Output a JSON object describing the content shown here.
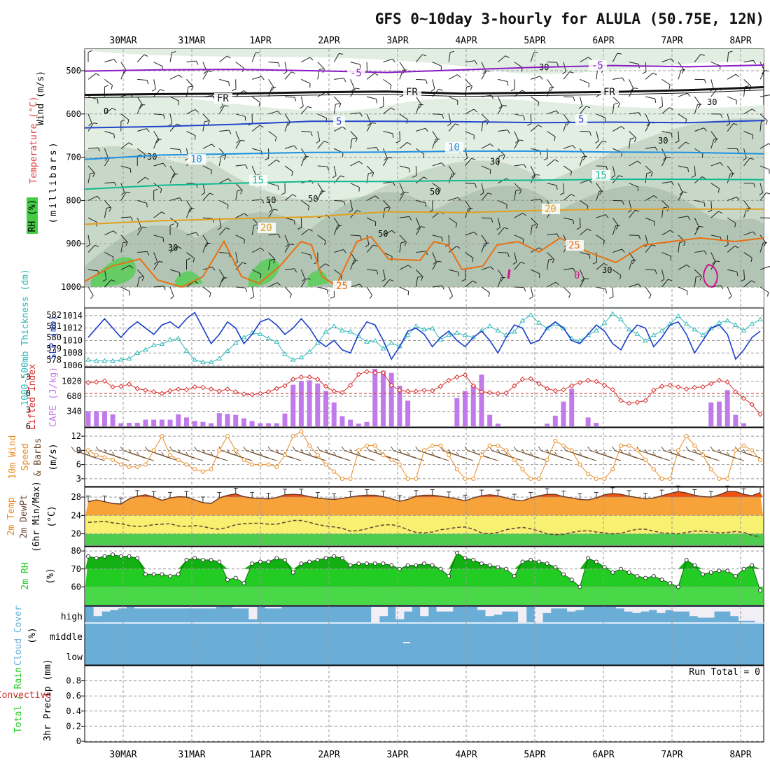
{
  "title": "GFS 0~10day 3-hourly for ALULA (50.75E, 12N)",
  "dates": [
    "30MAR",
    "31MAR",
    "1APR",
    "2APR",
    "3APR",
    "4APR",
    "5APR",
    "6APR",
    "7APR",
    "8APR"
  ],
  "colors": {
    "rh_light": "#e2eee2",
    "rh_mid": "#c8d8c8",
    "rh_dark": "#b2c5b4",
    "rh_green": "#66cc66",
    "t_minus5": "#8a1cc4",
    "t_fr": "#111111",
    "t_5": "#2244cc",
    "t_10": "#1e90e0",
    "t_15": "#10b890",
    "t_20": "#e0a020",
    "t_25": "#e87010",
    "t_30": "#d0108c",
    "slp": "#1a3fc8",
    "thk": "#30b8b8",
    "li": "#d83030",
    "cape": "#c07aec",
    "wind": "#e88a20",
    "barb": "#6b4a2a",
    "temp_fill": "#f7a33a",
    "temp_top": "#f05010",
    "dew_fill": "#f8f070",
    "dew_line": "#6b4a3a",
    "low_fill": "#4ecc4e",
    "rh_fill": "#22cc22",
    "rh_fill2": "#48d848",
    "cloud": "#6aaed8",
    "cloud_gap": "#f2eef6"
  },
  "panel1": {
    "ylabel_wind": "Wind (m/s)",
    "ylabel_temp": "Temperature (°C)",
    "ylabel_rh": "RH (%)",
    "ylabel_mb": "(millibars)",
    "levels": [
      "500",
      "600",
      "700",
      "800",
      "900",
      "1000"
    ],
    "rh_labels": [
      "0",
      "30",
      "30",
      "30",
      "50",
      "30",
      "50",
      "30",
      "50",
      "50",
      "30",
      "30"
    ],
    "isotherms": [
      {
        "name": "minus5",
        "label": "-5",
        "mb": [
          501,
          498,
          497,
          500,
          504,
          498,
          492,
          488,
          491,
          487
        ],
        "labels": [
          "-5",
          "-5"
        ]
      },
      {
        "name": "fr",
        "label": "FR",
        "mb": [
          556,
          554,
          553,
          550,
          548,
          553,
          551,
          549,
          545,
          538
        ],
        "labels": [
          "FR",
          "FR",
          "FR"
        ]
      },
      {
        "name": "5",
        "label": "5",
        "mb": [
          632,
          629,
          624,
          617,
          617,
          618,
          620,
          619,
          620,
          615
        ],
        "labels": [
          "5",
          "5"
        ]
      },
      {
        "name": "10",
        "label": "10",
        "mb": [
          705,
          695,
          692,
          689,
          688,
          686,
          686,
          688,
          689,
          692
        ],
        "labels": [
          "10",
          "10"
        ]
      },
      {
        "name": "15",
        "label": "15",
        "mb": [
          774,
          765,
          760,
          756,
          756,
          754,
          753,
          751,
          751,
          752
        ],
        "labels": [
          "15",
          "15"
        ]
      },
      {
        "name": "20",
        "label": "20",
        "mb": [
          855,
          847,
          842,
          838,
          826,
          828,
          823,
          820,
          820,
          820
        ],
        "labels": [
          "20",
          "20"
        ]
      },
      {
        "name": "25",
        "label": "25",
        "mb": [
          998,
          930,
          1002,
          935,
          1000,
          905,
          1003,
          900,
          1000,
          890
        ],
        "labels": [
          "25",
          "25",
          "25"
        ]
      },
      {
        "name": "30",
        "label": "0",
        "mb": [
          960,
          975
        ],
        "labels": [
          "0"
        ]
      }
    ]
  },
  "panel2": {
    "ylabel_thk": "1000-500mb Thickness (dm)",
    "ylabel_slp": "SLP (mb)",
    "thk_ticks": [
      "582",
      "581",
      "580",
      "579",
      "578"
    ],
    "slp_ticks": [
      "1014",
      "1012",
      "1010",
      "1008",
      "1006"
    ]
  },
  "panel3": {
    "ylabel_li": "Lifted Index",
    "ylabel_cape": "CAPE (J/kg)",
    "li_ticks": [
      "-3",
      "0",
      "3",
      "6"
    ],
    "cape_ticks": [
      "1020",
      "680",
      "340"
    ]
  },
  "panel4": {
    "ylabel_wind": "10m Wind",
    "ylabel_speed": "Speed",
    "ylabel_barbs": "& Barbs",
    "ylabel_unit": "(m/s)",
    "ticks": [
      "12",
      "9",
      "6",
      "3"
    ]
  },
  "panel5": {
    "ylabel_temp": "2m Temp",
    "ylabel_dew": "2m DewPt",
    "ylabel_minmax": "(6hr Min/Max)",
    "ylabel_unit": "(°C)",
    "ticks": [
      "28",
      "24",
      "20"
    ]
  },
  "panel6": {
    "ylabel": "2m RH",
    "ylabel_unit": "(%)",
    "ticks": [
      "80",
      "70",
      "60"
    ]
  },
  "panel7": {
    "ylabel": "Cloud Cover",
    "ylabel_unit": "(%)",
    "levels": [
      "high",
      "middle",
      "low"
    ]
  },
  "panel8": {
    "ylabel_total": "Total / Rain",
    "ylabel_conv": "Convective",
    "ylabel_precip": "3hr Precip (mm)",
    "ticks": [
      "0.8",
      "0.6",
      "0.4",
      "0.2",
      "0"
    ],
    "run_total": "Run Total = 0"
  },
  "chart_data": {
    "type": "line",
    "title": "GFS 0~10day 3-hourly for ALULA (50.75E, 12N)",
    "x_start": "29MAR 12Z",
    "x_step_hours": 3,
    "x_ticks": [
      "30MAR",
      "31MAR",
      "1APR",
      "2APR",
      "3APR",
      "4APR",
      "5APR",
      "6APR",
      "7APR",
      "8APR"
    ],
    "series": [
      {
        "name": "SLP (mb)",
        "ylim": [
          1006,
          1015
        ],
        "values": [
          1010.5,
          1012,
          1013.5,
          1012,
          1010.5,
          1012,
          1013,
          1012,
          1011,
          1012.5,
          1013,
          1012,
          1013.5,
          1014.5,
          1012,
          1009.5,
          1011,
          1013,
          1012,
          1009.5,
          1011,
          1013,
          1013.5,
          1012.5,
          1011,
          1012,
          1013.5,
          1012,
          1010,
          1009,
          1010,
          1008.5,
          1008,
          1011,
          1013,
          1012.5,
          1010,
          1007,
          1009,
          1011.5,
          1012,
          1011,
          1009,
          1010.5,
          1011.5,
          1010,
          1009,
          1010.5,
          1011.5,
          1010,
          1008,
          1010.5,
          1012.5,
          1012,
          1009.5,
          1010,
          1012,
          1013,
          1012,
          1010,
          1009.5,
          1011,
          1012.5,
          1011.5,
          1009.5,
          1008.5,
          1011,
          1012.5,
          1012,
          1009,
          1010.5,
          1012.5,
          1013,
          1011,
          1008,
          1010,
          1012,
          1012.5,
          1011,
          1007,
          1008.5,
          1010.5,
          1011.5
        ]
      },
      {
        "name": "1000-500mb Thickness (dm)",
        "ylim": [
          577.5,
          582.5
        ],
        "values": [
          578,
          577.9,
          577.9,
          577.9,
          578,
          578.1,
          578.6,
          578.9,
          579.3,
          579.4,
          579.8,
          579.9,
          578.8,
          578,
          577.8,
          577.8,
          578.1,
          578.8,
          579.5,
          580,
          580.4,
          580.3,
          579.9,
          579.6,
          578.5,
          578,
          578.2,
          578.7,
          579.5,
          580.5,
          581,
          580.6,
          580.5,
          580.1,
          579.6,
          579.7,
          579,
          579.5,
          579.2,
          580.2,
          581,
          580.7,
          580.8,
          579.8,
          580.2,
          580.4,
          580.2,
          580,
          580.6,
          581,
          580.6,
          580.2,
          580.5,
          581.5,
          582,
          581.3,
          580.8,
          581.2,
          580.8,
          579.9,
          579.7,
          580.2,
          580.6,
          581.3,
          582.1,
          581.6,
          580.7,
          580.3,
          579.7,
          580.2,
          580.6,
          581.2,
          581.9,
          581.2,
          580.7,
          580.2,
          580.8,
          581.3,
          581.5,
          581.1,
          580.6,
          581.2,
          581.6
        ]
      },
      {
        "name": "Lifted Index",
        "ylim": [
          6,
          -4.5
        ],
        "values": [
          -2,
          -2.1,
          -2.3,
          -1.2,
          -1.3,
          -1.7,
          -0.9,
          -0.6,
          -0.3,
          0,
          -0.5,
          -0.8,
          -0.7,
          -1.2,
          -1.1,
          -0.8,
          -0.4,
          -0.8,
          -0.3,
          0.1,
          0.2,
          0,
          -0.3,
          -0.9,
          -1.4,
          -2.6,
          -3,
          -3,
          -2.6,
          -1.3,
          -0.4,
          -0.2,
          -1.5,
          -3.5,
          -4,
          -3.8,
          -3.8,
          -1.5,
          -0.6,
          -0.4,
          -0.4,
          -0.6,
          -0.5,
          -1.3,
          -2.4,
          -3,
          -3.4,
          -1.4,
          -0.3,
          -0.2,
          0,
          -0.1,
          -1.4,
          -2.6,
          -2.7,
          -1.8,
          -0.9,
          -0.5,
          -0.7,
          -1.4,
          -2,
          -2.4,
          -2.2,
          -1.5,
          -0.7,
          1.3,
          1.8,
          1.6,
          1.3,
          -0.6,
          -1.3,
          -1.5,
          -1.2,
          -0.8,
          -1.1,
          -1.2,
          -1.8,
          -2.4,
          -2.1,
          -0.3,
          0.9,
          2,
          3.8
        ]
      },
      {
        "name": "CAPE (J/kg)",
        "ylim": [
          0,
          1300
        ],
        "values": [
          340,
          340,
          340,
          270,
          70,
          80,
          80,
          150,
          150,
          150,
          150,
          270,
          200,
          120,
          100,
          70,
          300,
          280,
          260,
          180,
          120,
          70,
          70,
          70,
          290,
          940,
          1030,
          1040,
          970,
          800,
          540,
          230,
          150,
          60,
          100,
          1300,
          1260,
          1210,
          920,
          580,
          0,
          0,
          0,
          0,
          0,
          640,
          800,
          940,
          1170,
          260,
          60,
          0,
          0,
          0,
          0,
          0,
          60,
          240,
          560,
          850,
          0,
          200,
          80,
          0,
          0,
          0,
          0,
          0,
          0,
          0,
          0,
          0,
          0,
          0,
          0,
          0,
          540,
          560,
          820,
          260,
          70,
          0,
          0
        ]
      },
      {
        "name": "10m Wind Speed (m/s)",
        "ylim": [
          1.5,
          13.5
        ],
        "values": [
          9,
          8,
          7.5,
          7,
          6,
          5.5,
          5.5,
          6,
          9,
          12,
          8,
          7,
          6,
          5,
          4.5,
          5,
          9,
          12,
          9,
          7,
          6,
          6,
          6,
          5.5,
          8,
          12,
          13,
          10,
          8,
          6,
          4.5,
          3,
          3,
          9,
          10,
          10,
          8,
          7,
          6,
          3,
          3,
          9,
          10,
          10,
          8,
          5,
          3,
          3,
          8,
          10,
          10,
          9,
          7,
          5,
          3,
          3,
          7,
          11,
          10,
          9,
          6,
          4,
          3,
          3,
          5,
          10,
          10,
          9,
          7,
          5,
          3,
          3,
          9,
          12,
          10,
          8,
          5,
          3,
          3,
          9,
          10,
          9,
          7
        ]
      },
      {
        "name": "2m Temp (°C)",
        "ylim": [
          17.5,
          30
        ],
        "values": [
          27,
          27.4,
          27,
          26.6,
          26.5,
          27.6,
          28.2,
          28.5,
          28,
          27.3,
          27.8,
          28.1,
          28,
          27.4,
          26.8,
          26.6,
          27.8,
          28.4,
          28.7,
          28.1,
          27.8,
          27.7,
          27.6,
          27.9,
          28.5,
          28.6,
          28.5,
          28.1,
          27.8,
          27.6,
          27.5,
          27.7,
          28,
          28.3,
          28.4,
          28.4,
          28.1,
          27.6,
          27.1,
          27.5,
          28.2,
          28.4,
          28.4,
          28.2,
          27.9,
          27.6,
          27.2,
          27.8,
          28.3,
          28.5,
          28.3,
          27.8,
          27.4,
          27.2,
          27.8,
          28.3,
          28.6,
          28.6,
          28.1,
          27.8,
          27.5,
          27.4,
          27.8,
          28.5,
          28.8,
          28.6,
          28.2,
          27.9,
          27.6,
          27.8,
          28.3,
          28.8,
          29.2,
          28.9,
          28.4,
          28.1,
          28,
          28.5,
          29.2,
          29.2,
          28.6,
          28.3,
          29
        ]
      },
      {
        "name": "2m DewPt (°C)",
        "ylim": [
          17.5,
          30
        ],
        "values": [
          22.5,
          22.6,
          22.7,
          22.4,
          22.2,
          21.8,
          21.6,
          21.7,
          22,
          22.1,
          22.2,
          21.7,
          21.6,
          21.8,
          21.6,
          21.2,
          21,
          21.4,
          22,
          22.2,
          22.3,
          22.3,
          22.1,
          22.1,
          22.5,
          22.9,
          22.9,
          22.5,
          22,
          21.7,
          21.5,
          21.2,
          20.6,
          20.7,
          21.1,
          21.6,
          21.9,
          22,
          21.6,
          20.9,
          20.3,
          20.2,
          20.4,
          20.9,
          21.1,
          21.4,
          21.5,
          21,
          20.2,
          20,
          20.3,
          20.9,
          21.2,
          21.4,
          21.1,
          20.6,
          20,
          19.8,
          19.9,
          20.3,
          20.6,
          20.7,
          20.4,
          20.2,
          20,
          20.1,
          20.6,
          21,
          21,
          20.6,
          20.2,
          20.1,
          20,
          20.3,
          20.6,
          20.6,
          20.4,
          20.2,
          20.3,
          20.5,
          20.3,
          19.7,
          19.3
        ]
      },
      {
        "name": "2m RH (%)",
        "ylim": [
          50,
          82
        ],
        "values": [
          77,
          76,
          77,
          78,
          77,
          77,
          76,
          67,
          67,
          67,
          66,
          67,
          75,
          76,
          75,
          75,
          74,
          64,
          65,
          62,
          73,
          74,
          74,
          76,
          75,
          68,
          73,
          74,
          75,
          76,
          77,
          76,
          72,
          73,
          73,
          73,
          73,
          72,
          70,
          72,
          72,
          73,
          72,
          70,
          66,
          79,
          76,
          75,
          73,
          72,
          71,
          70,
          66,
          74,
          75,
          74,
          73,
          71,
          67,
          64,
          60,
          76,
          74,
          71,
          68,
          70,
          68,
          66,
          65,
          66,
          64,
          62,
          60,
          75,
          72,
          67,
          68,
          69,
          69,
          66,
          70,
          72,
          58
        ]
      },
      {
        "name": "3hr Precip (mm)",
        "ylim": [
          0,
          1
        ],
        "values": [
          0,
          0,
          0,
          0,
          0,
          0,
          0,
          0,
          0,
          0,
          0,
          0,
          0,
          0,
          0,
          0,
          0,
          0,
          0,
          0,
          0,
          0,
          0,
          0,
          0,
          0,
          0,
          0,
          0,
          0,
          0,
          0,
          0,
          0,
          0,
          0,
          0,
          0,
          0,
          0,
          0,
          0,
          0,
          0,
          0,
          0,
          0,
          0,
          0,
          0,
          0,
          0,
          0,
          0,
          0,
          0,
          0,
          0,
          0,
          0,
          0,
          0,
          0,
          0,
          0,
          0,
          0,
          0,
          0,
          0,
          0,
          0,
          0,
          0,
          0,
          0,
          0,
          0,
          0,
          0,
          0,
          0,
          0
        ]
      }
    ],
    "cloud_high_gap": [
      0,
      0.6,
      0.3,
      0,
      0,
      0,
      0,
      0,
      0,
      0,
      0,
      0,
      0,
      0,
      0,
      0,
      0,
      0,
      0,
      0,
      0,
      0,
      0,
      0,
      0,
      0,
      0,
      0,
      0,
      0,
      0,
      0,
      0,
      0,
      0,
      1,
      0,
      0,
      0,
      0,
      0,
      0,
      0,
      0,
      0,
      0,
      0,
      0,
      0,
      0,
      0,
      0,
      0,
      1,
      0,
      0,
      0,
      0,
      0,
      0,
      0,
      0,
      0,
      0,
      0,
      0,
      0,
      0,
      0,
      0,
      0,
      0,
      0,
      0,
      0,
      0,
      0,
      0,
      0,
      0,
      0,
      0,
      1
    ]
  }
}
